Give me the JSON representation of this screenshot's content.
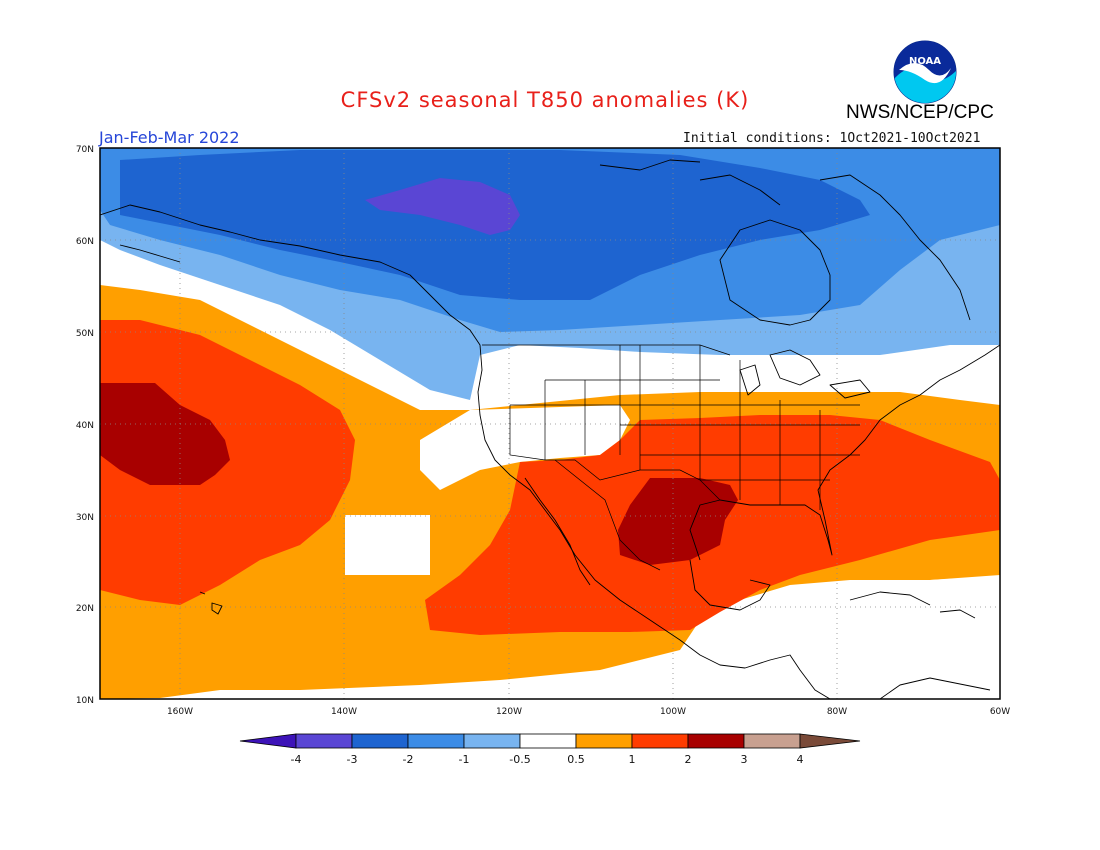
{
  "header": {
    "title": "CFSv2 seasonal T850 anomalies (K)",
    "agency": "NWS/NCEP/CPC",
    "period": "Jan-Feb-Mar 2022",
    "initial_conditions": "Initial conditions: 1Oct2021-10Oct2021",
    "logo_text": "NOAA"
  },
  "map": {
    "lon_range": [
      -172,
      -60
    ],
    "lat_range": [
      10,
      70
    ],
    "lat_ticks": [
      {
        "value": 70,
        "label": "70N"
      },
      {
        "value": 60,
        "label": "60N"
      },
      {
        "value": 50,
        "label": "50N"
      },
      {
        "value": 40,
        "label": "40N"
      },
      {
        "value": 30,
        "label": "30N"
      },
      {
        "value": 20,
        "label": "20N"
      },
      {
        "value": 10,
        "label": "10N"
      }
    ],
    "lon_ticks": [
      {
        "value": -160,
        "label": "160W"
      },
      {
        "value": -140,
        "label": "140W"
      },
      {
        "value": -120,
        "label": "120W"
      },
      {
        "value": -100,
        "label": "100W"
      },
      {
        "value": -80,
        "label": "80W"
      },
      {
        "value": -60,
        "label": "60W"
      }
    ]
  },
  "colorbar": {
    "levels": [
      "-4",
      "-3",
      "-2",
      "-1",
      "-0.5",
      "0.5",
      "1",
      "2",
      "3",
      "4"
    ],
    "colors": [
      "#3d13b8",
      "#5a46d4",
      "#1e64d0",
      "#3c8ce6",
      "#78b4f0",
      "#ffffff",
      "#ff9f00",
      "#ff3c00",
      "#a80000",
      "#c8a090",
      "#7a4a38"
    ]
  },
  "colors": {
    "c_m4": "#3d13b8",
    "c_m3": "#5a46d4",
    "c_m2": "#1e64d0",
    "c_m1": "#3c8ce6",
    "c_m05": "#78b4f0",
    "c_0": "#ffffff",
    "c_05": "#ff9f00",
    "c_1": "#ff3c00",
    "c_2": "#a80000"
  }
}
